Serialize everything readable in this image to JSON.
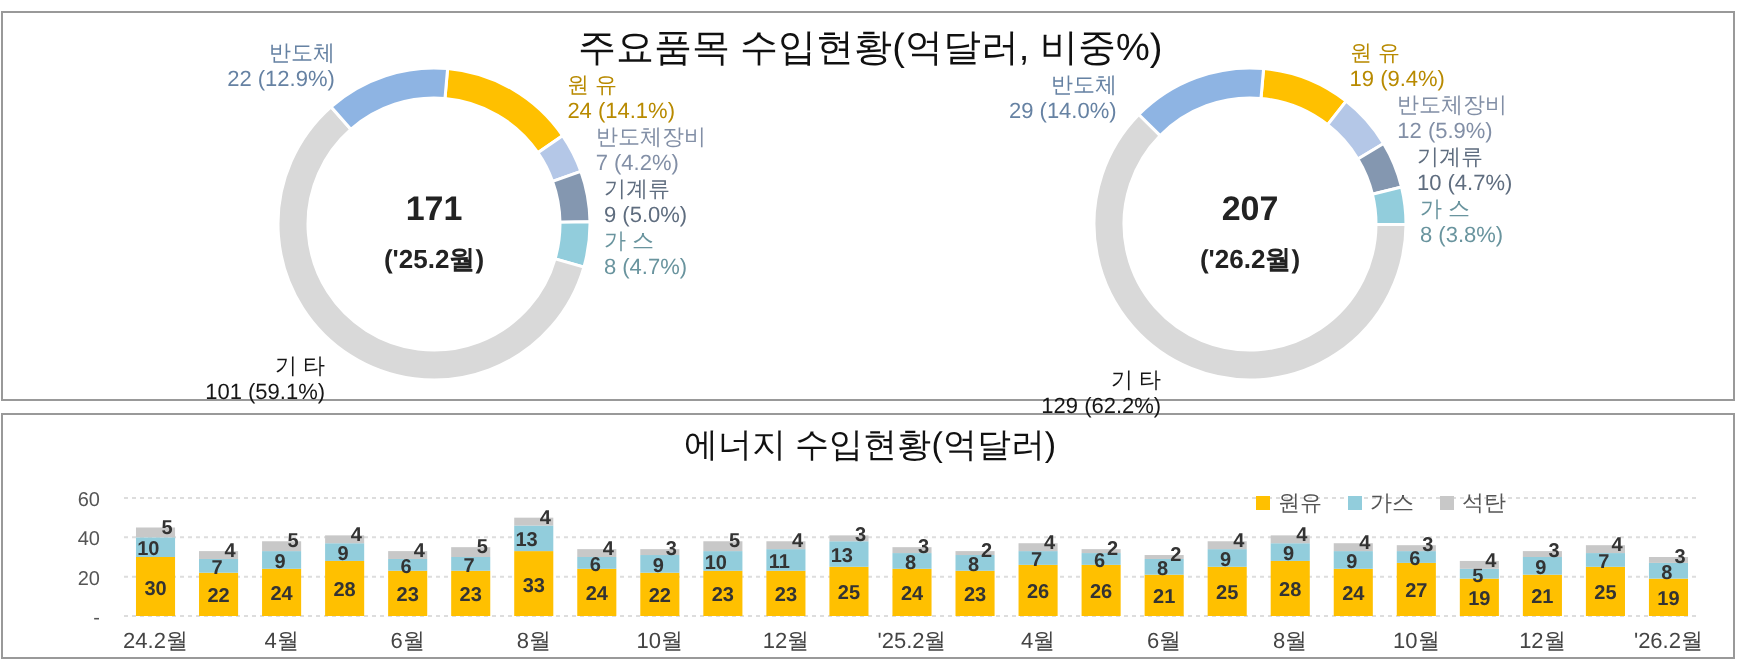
{
  "chart_data": [
    {
      "type": "donut",
      "title": "주요품목 수입현황(억달러, 비중%)",
      "categories": [
        "원 유",
        "반도체장비",
        "기계류",
        "가 스",
        "기 타",
        "반도체"
      ],
      "values": [
        24,
        7,
        9,
        8,
        101,
        22
      ],
      "value_labels": [
        "24 (14.1%)",
        "7 (4.2%)",
        "9 (5.0%)",
        "8 (4.7%)",
        "101 (59.1%)",
        "22 (12.9%)"
      ],
      "colors": [
        "#ffc000",
        "#b4c7e7",
        "#8497b0",
        "#92cddc",
        "#d9d9d9",
        "#8eb4e3"
      ],
      "annotations": [
        "171",
        "('25.2월)"
      ]
    },
    {
      "type": "donut",
      "categories": [
        "원 유",
        "반도체장비",
        "기계류",
        "가 스",
        "기 타",
        "반도체"
      ],
      "values": [
        19,
        12,
        10,
        8,
        129,
        29
      ],
      "value_labels": [
        "19 (9.4%)",
        "12 (5.9%)",
        "10 (4.7%)",
        "8 (3.8%)",
        "129 (62.2%)",
        "29 (14.0%)"
      ],
      "colors": [
        "#ffc000",
        "#b4c7e7",
        "#8497b0",
        "#92cddc",
        "#d9d9d9",
        "#8eb4e3"
      ],
      "annotations": [
        "207",
        "('26.2월)"
      ]
    },
    {
      "type": "bar",
      "stacked": true,
      "title": "에너지 수입현황(억달러)",
      "categories": [
        "24.2월",
        null,
        "4월",
        null,
        "6월",
        null,
        "8월",
        null,
        "10월",
        null,
        "12월",
        null,
        "'25.2월",
        null,
        "4월",
        null,
        "6월",
        null,
        "8월",
        null,
        "10월",
        null,
        "12월",
        null,
        "'26.2월"
      ],
      "series": [
        {
          "name": "원유",
          "color": "#ffc000",
          "values": [
            30,
            22,
            24,
            28,
            23,
            23,
            33,
            24,
            22,
            23,
            23,
            25,
            24,
            23,
            26,
            26,
            21,
            25,
            28,
            24,
            27,
            19,
            21,
            25,
            19
          ]
        },
        {
          "name": "가스",
          "color": "#92cddc",
          "values": [
            10,
            7,
            9,
            9,
            6,
            7,
            13,
            6,
            9,
            10,
            11,
            13,
            8,
            8,
            7,
            6,
            8,
            9,
            9,
            9,
            6,
            5,
            9,
            7,
            8
          ]
        },
        {
          "name": "석탄",
          "color": "#c8c8c8",
          "values": [
            5,
            4,
            5,
            4,
            4,
            5,
            4,
            4,
            3,
            5,
            4,
            3,
            3,
            2,
            4,
            2,
            2,
            4,
            4,
            4,
            3,
            4,
            3,
            4,
            3
          ]
        }
      ],
      "ylim": [
        0,
        60
      ],
      "yticks": [
        {
          "value": 0,
          "label": "-"
        },
        20,
        40,
        60
      ],
      "grid": "y",
      "legend": "top right",
      "data_labels": true
    }
  ]
}
